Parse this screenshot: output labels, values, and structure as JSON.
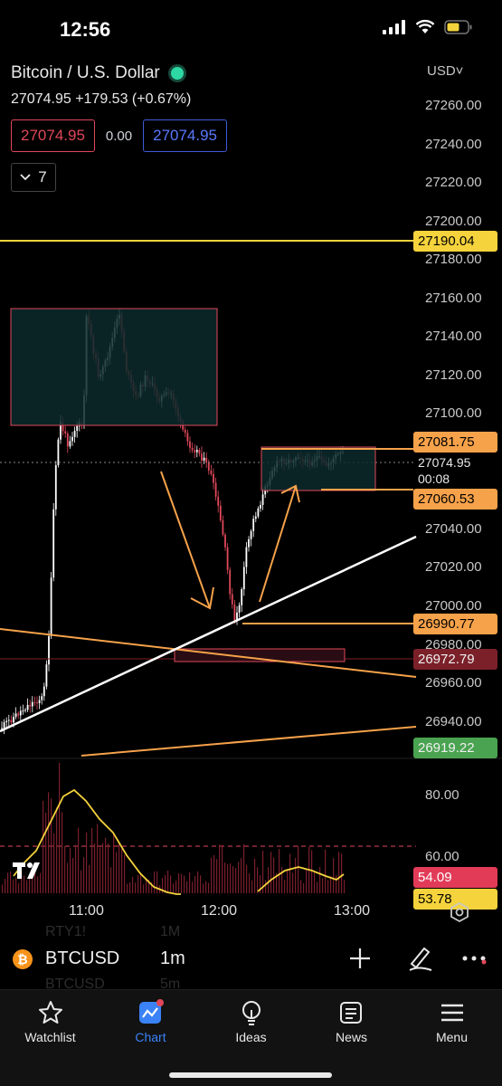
{
  "status_bar": {
    "time": "12:56"
  },
  "header": {
    "symbol_name": "Bitcoin / U.S. Dollar",
    "last_price": "27074.95",
    "change": "+179.53",
    "change_pct": "(+0.67%)",
    "bid": "27074.95",
    "spread": "0.00",
    "ask": "27074.95",
    "indicator_count": "7"
  },
  "axis": {
    "currency": "USD",
    "ticks": [
      "27260.00",
      "27240.00",
      "27220.00",
      "27200.00",
      "27180.00",
      "27160.00",
      "27140.00",
      "27120.00",
      "27100.00",
      "27040.00",
      "27020.00",
      "27000.00",
      "26980.00",
      "26960.00",
      "26940.00"
    ],
    "indicator_ticks": [
      "80.00",
      "60.00"
    ]
  },
  "price_tags": {
    "yellow_line": "27190.04",
    "box_top": "27081.75",
    "last": "27074.95",
    "countdown": "00:08",
    "box_bottom": "27060.53",
    "support": "26990.77",
    "zone": "26972.79",
    "lower_line": "26919.22",
    "rsi": "54.09",
    "rsi_partial": "53.78"
  },
  "time_axis": [
    "11:00",
    "12:00",
    "13:00"
  ],
  "symbol_bar": {
    "ticker": "BTCUSD",
    "interval": "1m",
    "ghost_top_ticker": "RTY1!",
    "ghost_top_interval": "1M",
    "ghost_bottom_ticker": "BTCUSD",
    "ghost_bottom_interval": "5m"
  },
  "nav": [
    {
      "label": "Watchlist",
      "icon": "star-icon"
    },
    {
      "label": "Chart",
      "icon": "chart-icon"
    },
    {
      "label": "Ideas",
      "icon": "lightbulb-icon"
    },
    {
      "label": "News",
      "icon": "news-icon"
    },
    {
      "label": "Menu",
      "icon": "menu-icon"
    }
  ],
  "colors": {
    "up": "#ffffff",
    "down": "#e0485a",
    "accent": "#3b82f6",
    "orange": "#f6a24a",
    "yellow": "#f5d33c",
    "zone_fill": "#0c2a2c"
  }
}
